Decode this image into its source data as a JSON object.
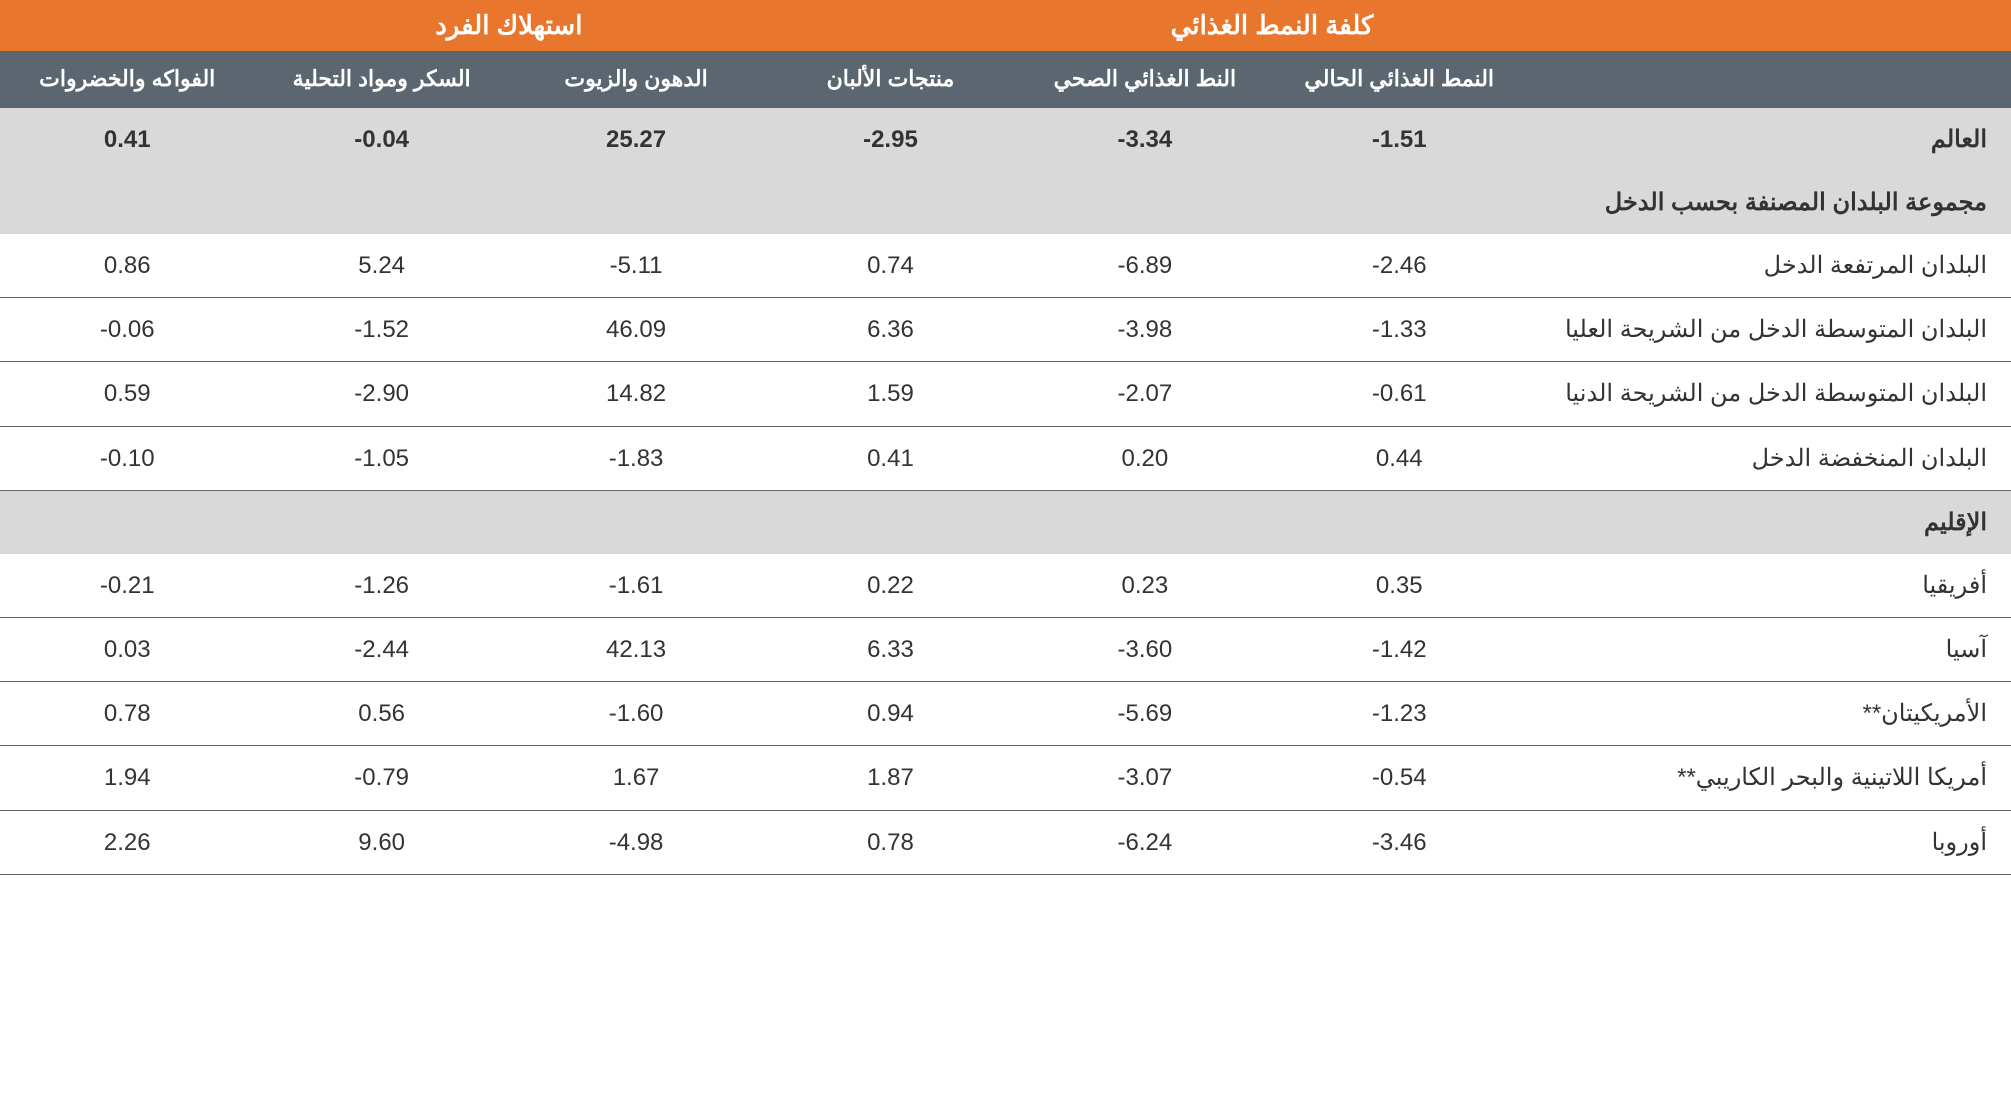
{
  "headers": {
    "group_cost": "كلفة النمط الغذائي",
    "group_consumption": "استهلاك الفرد",
    "sub": {
      "current_diet": "النمط الغذائي الحالي",
      "healthy_diet": "النط الغذائي الصحي",
      "dairy": "منتجات الألبان",
      "fats_oils": "الدهون والزيوت",
      "sugar": "السكر ومواد التحلية",
      "fruit_veg": "الفواكه والخضروات"
    }
  },
  "labels": {
    "world": "العالم",
    "by_income": "مجموعة البلدان المصنفة بحسب الدخل",
    "high_income": "البلدان المرتفعة الدخل",
    "upper_mid": "البلدان المتوسطة الدخل من الشريحة العليا",
    "lower_mid": "البلدان المتوسطة الدخل من الشريحة الدنيا",
    "low_income": "البلدان المنخفضة الدخل",
    "region": "الإقليم",
    "africa": "أفريقيا",
    "asia": "آسيا",
    "americas": "الأمريكيتان**",
    "lac": "أمريكا اللاتينية والبحر الكاريبي**",
    "europe": "أوروبا"
  },
  "rows": {
    "world": {
      "current": "1.51-",
      "healthy": "3.34-",
      "dairy": "2.95-",
      "fats": "25.27",
      "sugar": "0.04-",
      "fv": "0.41"
    },
    "high_income": {
      "current": "2.46-",
      "healthy": "6.89-",
      "dairy": "0.74",
      "fats": "5.11-",
      "sugar": "5.24",
      "fv": "0.86"
    },
    "upper_mid": {
      "current": "1.33-",
      "healthy": "3.98-",
      "dairy": "6.36",
      "fats": "46.09",
      "sugar": "1.52-",
      "fv": "0.06-"
    },
    "lower_mid": {
      "current": "0.61-",
      "healthy": "2.07-",
      "dairy": "1.59",
      "fats": "14.82",
      "sugar": "2.90-",
      "fv": "0.59"
    },
    "low_income": {
      "current": "0.44",
      "healthy": "0.20",
      "dairy": "0.41",
      "fats": "1.83-",
      "sugar": "1.05-",
      "fv": "0.10-"
    },
    "africa": {
      "current": "0.35",
      "healthy": "0.23",
      "dairy": "0.22",
      "fats": "1.61-",
      "sugar": "1.26-",
      "fv": "0.21-"
    },
    "asia": {
      "current": "1.42-",
      "healthy": "3.60-",
      "dairy": "6.33",
      "fats": "42.13",
      "sugar": "2.44-",
      "fv": "0.03"
    },
    "americas": {
      "current": "1.23-",
      "healthy": "5.69-",
      "dairy": "0.94",
      "fats": "1.60-",
      "sugar": "0.56",
      "fv": "0.78"
    },
    "lac": {
      "current": "0.54-",
      "healthy": "3.07-",
      "dairy": "1.87",
      "fats": "1.67",
      "sugar": "0.79-",
      "fv": "1.94"
    },
    "europe": {
      "current": "3.46-",
      "healthy": "6.24-",
      "dairy": "0.78",
      "fats": "4.98-",
      "sugar": "9.60",
      "fv": "2.26"
    }
  },
  "style": {
    "accent": "#e8762c",
    "dark": "#5b6670",
    "grey": "#d9d9d9",
    "text": "#333333"
  }
}
